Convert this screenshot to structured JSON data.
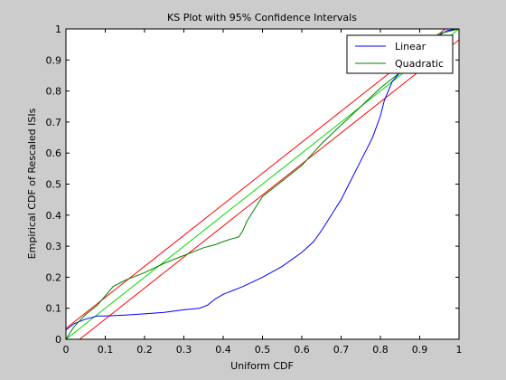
{
  "chart_data": {
    "type": "line",
    "title": "KS Plot with 95% Confidence Intervals",
    "xlabel": "Uniform CDF",
    "ylabel": "Empirical CDF of Rescaled ISIs",
    "xlim": [
      0,
      1
    ],
    "ylim": [
      0,
      1
    ],
    "xticks": [
      0,
      0.1,
      0.2,
      0.3,
      0.4,
      0.5,
      0.6,
      0.7,
      0.8,
      0.9,
      1
    ],
    "yticks": [
      0,
      0.1,
      0.2,
      0.3,
      0.4,
      0.5,
      0.6,
      0.7,
      0.8,
      0.9,
      1
    ],
    "xtick_labels": [
      "0",
      "0.1",
      "0.2",
      "0.3",
      "0.4",
      "0.5",
      "0.6",
      "0.7",
      "0.8",
      "0.9",
      "1"
    ],
    "ytick_labels": [
      "0",
      "0.1",
      "0.2",
      "0.3",
      "0.4",
      "0.5",
      "0.6",
      "0.7",
      "0.8",
      "0.9",
      "1"
    ],
    "grid": false,
    "legend_position": "top-right",
    "series": [
      {
        "name": "Linear",
        "color": "#0000ff",
        "x": [
          0,
          0.02,
          0.05,
          0.08,
          0.1,
          0.15,
          0.2,
          0.25,
          0.3,
          0.34,
          0.36,
          0.38,
          0.4,
          0.45,
          0.5,
          0.55,
          0.6,
          0.63,
          0.65,
          0.68,
          0.7,
          0.72,
          0.74,
          0.76,
          0.78,
          0.8,
          0.81,
          0.82,
          0.83,
          0.85,
          0.87,
          0.9,
          0.93,
          0.95,
          0.97,
          1
        ],
        "y": [
          0.03,
          0.05,
          0.065,
          0.075,
          0.075,
          0.078,
          0.082,
          0.087,
          0.095,
          0.1,
          0.11,
          0.13,
          0.145,
          0.17,
          0.2,
          0.235,
          0.28,
          0.315,
          0.35,
          0.41,
          0.45,
          0.5,
          0.55,
          0.6,
          0.65,
          0.72,
          0.77,
          0.8,
          0.83,
          0.86,
          0.89,
          0.93,
          0.965,
          0.98,
          0.995,
          1
        ]
      },
      {
        "name": "Quadratic",
        "color": "#008000",
        "x": [
          0,
          0.02,
          0.05,
          0.08,
          0.1,
          0.12,
          0.15,
          0.2,
          0.25,
          0.3,
          0.35,
          0.38,
          0.4,
          0.42,
          0.44,
          0.45,
          0.46,
          0.48,
          0.5,
          0.55,
          0.6,
          0.65,
          0.7,
          0.75,
          0.8,
          0.85,
          0.88,
          0.9,
          0.92,
          0.95,
          1
        ],
        "y": [
          0,
          0.04,
          0.08,
          0.11,
          0.14,
          0.17,
          0.19,
          0.215,
          0.245,
          0.27,
          0.295,
          0.305,
          0.315,
          0.323,
          0.33,
          0.35,
          0.38,
          0.42,
          0.46,
          0.51,
          0.56,
          0.63,
          0.69,
          0.75,
          0.81,
          0.86,
          0.9,
          0.93,
          0.96,
          0.985,
          1
        ]
      },
      {
        "name": "",
        "color": "#00d800",
        "x": [
          0,
          1
        ],
        "y": [
          0,
          1
        ]
      },
      {
        "name": "",
        "color": "#ff0000",
        "x": [
          0,
          0.965
        ],
        "y": [
          0.035,
          1
        ]
      },
      {
        "name": "",
        "color": "#ff0000",
        "x": [
          0.035,
          1
        ],
        "y": [
          0,
          0.965
        ]
      }
    ]
  }
}
